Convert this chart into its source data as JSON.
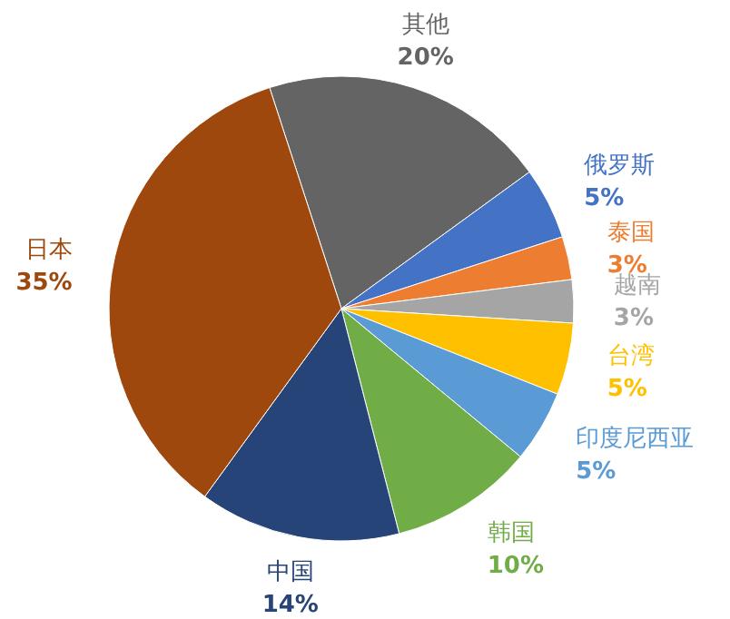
{
  "chart_data": {
    "type": "pie",
    "categories": [
      "其他",
      "俄罗斯",
      "泰国",
      "越南",
      "台湾",
      "印度尼西亚",
      "韩国",
      "中国",
      "日本"
    ],
    "values": [
      20,
      5,
      3,
      3,
      5,
      5,
      10,
      14,
      35
    ],
    "colors": [
      "#646464",
      "#4472c4",
      "#ed7d31",
      "#a5a5a5",
      "#ffc000",
      "#5b9bd5",
      "#70ad47",
      "#264478",
      "#9e480e"
    ],
    "value_labels": [
      "20%",
      "5%",
      "3%",
      "3%",
      "5%",
      "5%",
      "10%",
      "14%",
      "35%"
    ]
  }
}
